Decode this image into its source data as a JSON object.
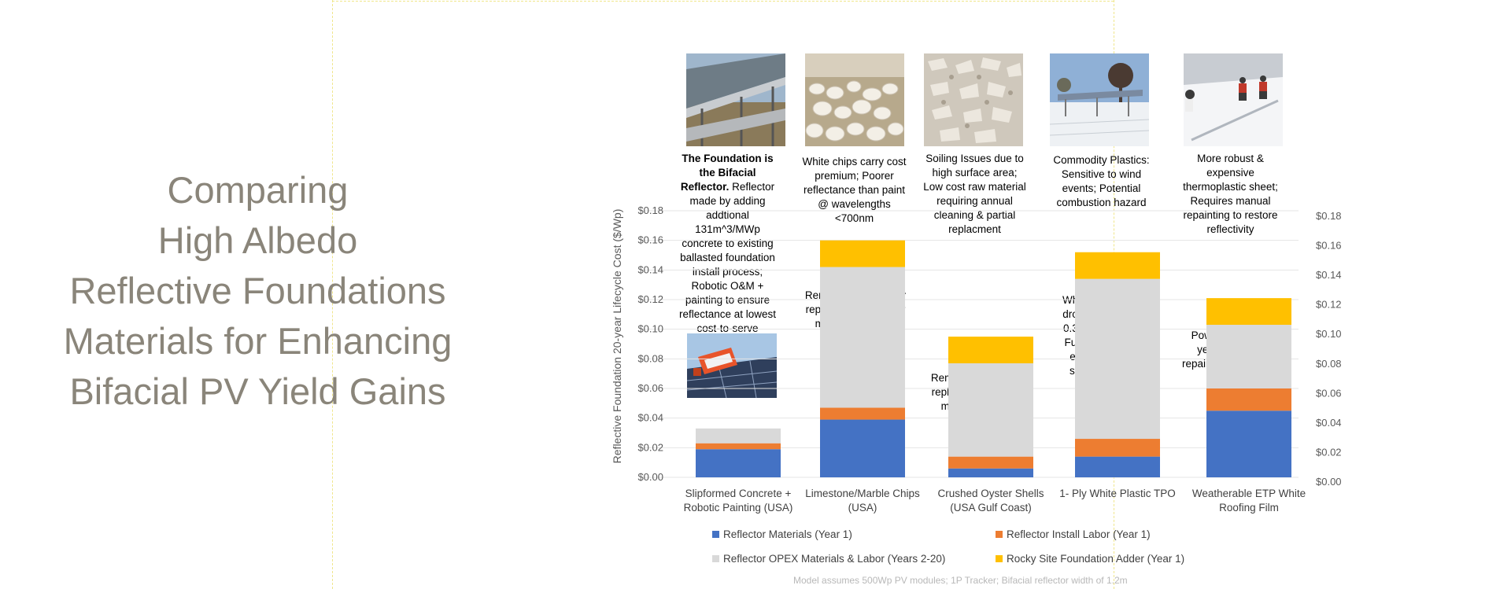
{
  "slide_title": [
    "Comparing",
    "High Albedo",
    "Reflective Foundations",
    "Materials for Enhancing",
    "Bifacial PV Yield Gains"
  ],
  "footer_note": "Model assumes 500Wp PV modules; 1P Tracker; Bifacial reflector width of 1.2m",
  "photo_icons": [
    "bifacial-reflector-photo",
    "marble-chips-photo",
    "oyster-shells-photo",
    "tpo-roof-photo",
    "roofing-film-install-photo",
    "robotic-painter-photo"
  ],
  "annotations": {
    "top": [
      {
        "bold": "The Foundation is the Bifacial Reflector.",
        "text": "Reflector made by adding addtional 131m^3/MWp concrete to existing ballasted foundation install process; Robotic O&M + painting to ensure reflectance at lowest cost-to-serve"
      },
      {
        "bold": "",
        "text": "White chips carry cost premium; Poorer reflectance than paint @ wavelengths <700nm"
      },
      {
        "bold": "",
        "text": "Soiling Issues due to high surface area; Low cost raw material requiring annual cleaning & partial replacment"
      },
      {
        "bold": "",
        "text": "Commodity Plastics: Sensitive to wind events; Potential combustion hazard"
      },
      {
        "bold": "",
        "text": "More robust & expensive thermoplastic sheet; Requires manual repainting to restore reflectivity"
      }
    ],
    "in_bar": [
      "",
      "Remove and clean or replace 20% of cover materials every 3 years",
      "Remove and clean or replace 35% of cover materials every 3 years",
      "White TPO albedo drops from 0.65 to 0.35 over 2 years;  Full Replacement every 4 years if single ply; can't powerwash",
      "Powerwash each year; Manually repaint every 4 years"
    ]
  },
  "chart_data": {
    "type": "bar",
    "stacked": true,
    "categories": [
      "Slipformed Concrete  + Robotic Painting (USA)",
      "Limestone/Marble Chips (USA)",
      "Crushed Oyster Shells (USA Gulf Coast)",
      "1- Ply White Plastic TPO",
      "Weatherable ETP White Roofing  Film"
    ],
    "series": [
      {
        "name": "Reflector Materials (Year 1)",
        "color": "#4472c4",
        "values": [
          0.019,
          0.039,
          0.006,
          0.014,
          0.045
        ]
      },
      {
        "name": "Reflector Install Labor (Year 1)",
        "color": "#ed7d31",
        "values": [
          0.004,
          0.008,
          0.008,
          0.012,
          0.015
        ]
      },
      {
        "name": "Reflector OPEX Materials & Labor (Years 2-20)",
        "color": "#d9d9d9",
        "values": [
          0.01,
          0.095,
          0.063,
          0.108,
          0.043
        ]
      },
      {
        "name": "Rocky Site Foundation Adder (Year 1)",
        "color": "#ffc000",
        "values": [
          0.0,
          0.018,
          0.018,
          0.018,
          0.018
        ]
      }
    ],
    "ylabel": "Reflective Foundation 20-year Lifecycle Cost ($/Wp)",
    "ylim": [
      0,
      0.18
    ],
    "y_ticks": [
      "$0.00",
      "$0.02",
      "$0.04",
      "$0.06",
      "$0.08",
      "$0.10",
      "$0.12",
      "$0.14",
      "$0.16",
      "$0.18"
    ],
    "legend_position": "bottom",
    "gridlines": true
  }
}
